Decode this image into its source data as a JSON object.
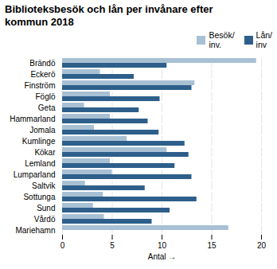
{
  "chart_data": {
    "type": "bar",
    "orientation": "horizontal",
    "title": "Biblioteksbesök och lån per invånare efter\nkommun 2018",
    "categories": [
      "Brändö",
      "Eckerö",
      "Finström",
      "Föglö",
      "Geta",
      "Hammarland",
      "Jomala",
      "Kumlinge",
      "Kökar",
      "Lemland",
      "Lumparland",
      "Saltvik",
      "Sottunga",
      "Sund",
      "Vårdö",
      "Mariehamn"
    ],
    "series": [
      {
        "name": "Besök/\ninv.",
        "color": "#a8c0d4",
        "values": [
          19.5,
          3.8,
          13.3,
          4.8,
          2.2,
          4.8,
          3.2,
          6.5,
          10.5,
          4.8,
          5.0,
          2.3,
          4.1,
          3.1,
          4.2,
          16.7
        ]
      },
      {
        "name": "Lån/\ninv",
        "color": "#2d5f8a",
        "values": [
          10.5,
          7.2,
          13.0,
          9.8,
          7.7,
          8.6,
          9.7,
          12.3,
          12.7,
          11.3,
          13.0,
          8.3,
          13.5,
          10.8,
          9.0,
          0.0
        ]
      }
    ],
    "xlabel": "Antal",
    "xlim": [
      0,
      20
    ],
    "xticks": [
      0,
      5,
      10,
      15,
      20
    ],
    "grid": true,
    "legend": "upper right"
  }
}
